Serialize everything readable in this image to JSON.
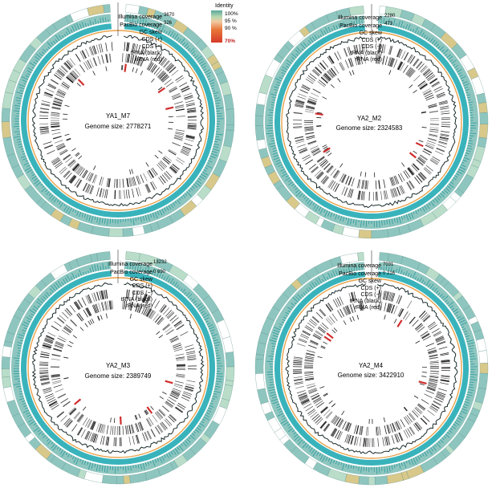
{
  "legend": {
    "title": "Identity",
    "stops": [
      "100%",
      "95 %",
      "90 %",
      "70%"
    ],
    "colors": [
      "#5ba89c",
      "#f2c9a0",
      "#e8773a",
      "#d63a2a"
    ]
  },
  "track_labels": [
    "Illumina coverage",
    "PacBio coverage",
    "GC skew",
    "CDS (+)",
    "CDS (−)",
    "tRNA (black)",
    "rRNA (red)"
  ],
  "colors": {
    "illumina": "#8ec6bf",
    "illumina_dark": "#2b9a9e",
    "pacbio": "#39b3bb",
    "orange": "#e8a24c",
    "skew": "#1a2a2a",
    "rrna": "#d12d2d",
    "segment_a": "#b9ddc9",
    "segment_b": "#d8c88a"
  },
  "genomes": [
    {
      "name": "YA1_M7",
      "size_label": "Genome size: 2778271",
      "ill_max": "3670",
      "pac_max": "326"
    },
    {
      "name": "YA2_M2",
      "size_label": "Genome size: 2324583",
      "ill_max": "2280",
      "pac_max": "473"
    },
    {
      "name": "YA2_M3",
      "size_label": "Genome size: 2389749",
      "ill_max": "13232",
      "pac_max": "0 690"
    },
    {
      "name": "YA2_M4",
      "size_label": "Genome size: 3422910",
      "ill_max": "7031",
      "pac_max": "0 216"
    }
  ]
}
